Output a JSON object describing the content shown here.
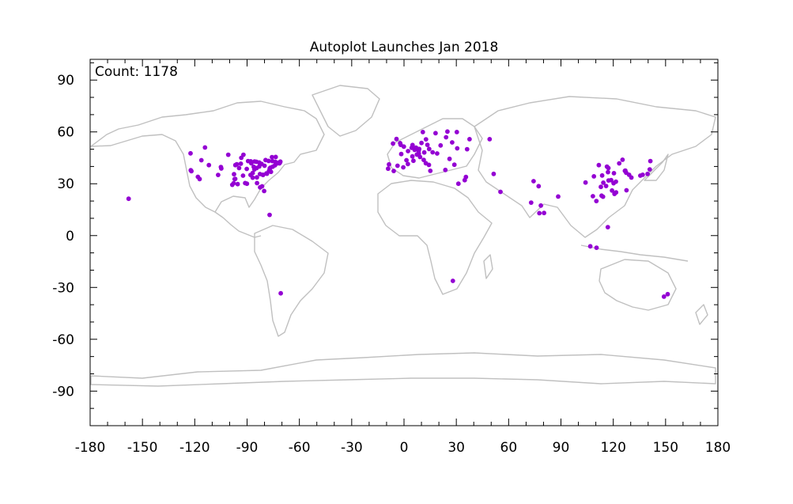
{
  "chart_data": {
    "type": "scatter",
    "title": "Autoplot Launches Jan 2018",
    "annotation": "Count: 1178",
    "xlabel": "",
    "ylabel": "",
    "xlim": [
      -180,
      180
    ],
    "ylim": [
      -110,
      102
    ],
    "xticks": [
      -180,
      -150,
      -120,
      -90,
      -60,
      -30,
      0,
      30,
      60,
      90,
      120,
      150,
      180
    ],
    "xtick_labels": [
      "-180",
      "-150",
      "-120",
      "-90",
      "-60",
      "-30",
      "0",
      "30",
      "60",
      "90",
      "120",
      "150",
      "180"
    ],
    "yticks": [
      90,
      60,
      30,
      0,
      -30,
      -60,
      -90
    ],
    "ytick_labels": [
      "90",
      "60",
      "30",
      "0",
      "-30",
      "-60",
      "-90"
    ],
    "grid": false,
    "basemap": "world coastlines and country borders (gray)",
    "colors": {
      "points": "#9400d3",
      "land": "#c0c0c0",
      "axes": "#000000"
    },
    "series": [
      {
        "points": [
          [
            -157.9,
            21.3
          ],
          [
            -122.4,
            47.6
          ],
          [
            -122.3,
            37.8
          ],
          [
            -121.9,
            37.3
          ],
          [
            -118.2,
            34.0
          ],
          [
            -117.2,
            32.7
          ],
          [
            -116.2,
            43.6
          ],
          [
            -111.9,
            40.8
          ],
          [
            -105.0,
            39.7
          ],
          [
            -106.6,
            35.1
          ],
          [
            -104.8,
            38.8
          ],
          [
            -97.7,
            30.3
          ],
          [
            -96.8,
            32.8
          ],
          [
            -95.4,
            29.8
          ],
          [
            -97.5,
            35.5
          ],
          [
            -98.5,
            29.4
          ],
          [
            -96.7,
            40.8
          ],
          [
            -93.3,
            45.0
          ],
          [
            -95.9,
            41.3
          ],
          [
            -94.6,
            39.1
          ],
          [
            -90.2,
            38.6
          ],
          [
            -93.6,
            41.6
          ],
          [
            -92.3,
            34.7
          ],
          [
            -90.1,
            30.0
          ],
          [
            -91.1,
            30.4
          ],
          [
            -89.4,
            43.1
          ],
          [
            -87.6,
            41.9
          ],
          [
            -86.2,
            39.8
          ],
          [
            -86.8,
            33.5
          ],
          [
            -84.4,
            33.7
          ],
          [
            -85.8,
            38.3
          ],
          [
            -84.5,
            39.1
          ],
          [
            -83.0,
            40.0
          ],
          [
            -83.0,
            42.3
          ],
          [
            -81.7,
            41.5
          ],
          [
            -80.0,
            40.4
          ],
          [
            -81.0,
            35.2
          ],
          [
            -80.2,
            25.8
          ],
          [
            -82.5,
            27.9
          ],
          [
            -81.4,
            28.5
          ],
          [
            -84.3,
            30.4
          ],
          [
            -86.8,
            36.2
          ],
          [
            -88.0,
            35.1
          ],
          [
            -78.6,
            35.8
          ],
          [
            -77.0,
            38.9
          ],
          [
            -76.6,
            39.3
          ],
          [
            -75.2,
            39.9
          ],
          [
            -74.0,
            40.7
          ],
          [
            -73.8,
            42.7
          ],
          [
            -71.1,
            42.4
          ],
          [
            -72.7,
            41.8
          ],
          [
            -77.6,
            43.2
          ],
          [
            -79.4,
            43.7
          ],
          [
            -75.7,
            45.4
          ],
          [
            -73.6,
            45.5
          ],
          [
            -114.1,
            51.0
          ],
          [
            -78.9,
            36.0
          ],
          [
            -77.4,
            37.5
          ],
          [
            -76.3,
            36.9
          ],
          [
            -80.8,
            35.1
          ],
          [
            -82.6,
            35.6
          ],
          [
            -84.6,
            42.7
          ],
          [
            -85.7,
            42.9
          ],
          [
            -92.1,
            46.8
          ],
          [
            -100.8,
            46.8
          ],
          [
            -97.1,
            32.7
          ],
          [
            -87.9,
            43.0
          ],
          [
            -75.5,
            43.1
          ],
          [
            -72.6,
            42.1
          ],
          [
            -71.4,
            41.8
          ],
          [
            -70.9,
            42.8
          ],
          [
            -77.1,
            12.0
          ],
          [
            -70.7,
            -33.4
          ],
          [
            -3.7,
            40.4
          ],
          [
            -2.2,
            53.5
          ],
          [
            -0.1,
            51.5
          ],
          [
            -1.9,
            52.5
          ],
          [
            -4.3,
            55.9
          ],
          [
            -6.3,
            53.3
          ],
          [
            2.3,
            48.9
          ],
          [
            4.9,
            52.4
          ],
          [
            4.4,
            50.8
          ],
          [
            6.1,
            49.6
          ],
          [
            8.7,
            50.1
          ],
          [
            11.6,
            48.1
          ],
          [
            13.4,
            52.5
          ],
          [
            10.0,
            53.6
          ],
          [
            7.4,
            46.9
          ],
          [
            8.5,
            47.4
          ],
          [
            9.2,
            45.5
          ],
          [
            12.5,
            41.9
          ],
          [
            16.4,
            48.2
          ],
          [
            14.4,
            50.1
          ],
          [
            19.0,
            47.5
          ],
          [
            21.0,
            52.2
          ],
          [
            24.9,
            60.2
          ],
          [
            18.1,
            59.3
          ],
          [
            10.8,
            59.9
          ],
          [
            12.6,
            55.7
          ],
          [
            23.7,
            38.0
          ],
          [
            26.1,
            44.4
          ],
          [
            30.5,
            50.5
          ],
          [
            37.6,
            55.8
          ],
          [
            30.3,
            59.9
          ],
          [
            28.9,
            41.0
          ],
          [
            -9.1,
            38.7
          ],
          [
            -8.6,
            41.2
          ],
          [
            2.2,
            41.4
          ],
          [
            -0.4,
            39.5
          ],
          [
            -5.9,
            37.4
          ],
          [
            5.4,
            43.3
          ],
          [
            1.4,
            43.6
          ],
          [
            -1.6,
            47.2
          ],
          [
            15.1,
            37.5
          ],
          [
            14.3,
            40.9
          ],
          [
            6.9,
            50.9
          ],
          [
            8.4,
            49.0
          ],
          [
            4.8,
            45.8
          ],
          [
            11.3,
            43.8
          ],
          [
            24.1,
            56.9
          ],
          [
            27.6,
            53.9
          ],
          [
            36.2,
            50.0
          ],
          [
            49.1,
            55.8
          ],
          [
            35.5,
            33.9
          ],
          [
            34.8,
            32.1
          ],
          [
            51.4,
            35.7
          ],
          [
            55.3,
            25.3
          ],
          [
            31.2,
            30.0
          ],
          [
            28.0,
            -26.2
          ],
          [
            72.9,
            19.1
          ],
          [
            77.6,
            13.0
          ],
          [
            78.5,
            17.4
          ],
          [
            77.2,
            28.6
          ],
          [
            80.3,
            13.1
          ],
          [
            88.4,
            22.6
          ],
          [
            74.3,
            31.5
          ],
          [
            106.8,
            -6.2
          ],
          [
            110.4,
            -7.0
          ],
          [
            116.9,
            4.9
          ],
          [
            116.4,
            39.9
          ],
          [
            117.2,
            39.1
          ],
          [
            121.5,
            31.2
          ],
          [
            120.2,
            30.3
          ],
          [
            118.8,
            32.1
          ],
          [
            113.3,
            23.1
          ],
          [
            114.1,
            22.5
          ],
          [
            114.3,
            30.6
          ],
          [
            104.1,
            30.7
          ],
          [
            108.9,
            34.3
          ],
          [
            113.6,
            34.8
          ],
          [
            112.9,
            28.2
          ],
          [
            117.0,
            36.7
          ],
          [
            120.4,
            36.1
          ],
          [
            121.6,
            25.0
          ],
          [
            120.7,
            24.1
          ],
          [
            126.9,
            37.6
          ],
          [
            129.1,
            35.2
          ],
          [
            127.4,
            36.4
          ],
          [
            126.7,
            37.5
          ],
          [
            139.7,
            35.7
          ],
          [
            135.5,
            34.7
          ],
          [
            136.9,
            35.2
          ],
          [
            130.4,
            33.6
          ],
          [
            141.3,
            43.1
          ],
          [
            140.9,
            38.3
          ],
          [
            125.3,
            43.9
          ],
          [
            123.4,
            41.8
          ],
          [
            111.7,
            40.8
          ],
          [
            108.3,
            22.8
          ],
          [
            110.3,
            20.0
          ],
          [
            119.3,
            26.1
          ],
          [
            115.9,
            28.7
          ],
          [
            117.3,
            31.9
          ],
          [
            127.6,
            26.2
          ],
          [
            151.2,
            -33.9
          ],
          [
            149.1,
            -35.3
          ]
        ]
      }
    ]
  }
}
